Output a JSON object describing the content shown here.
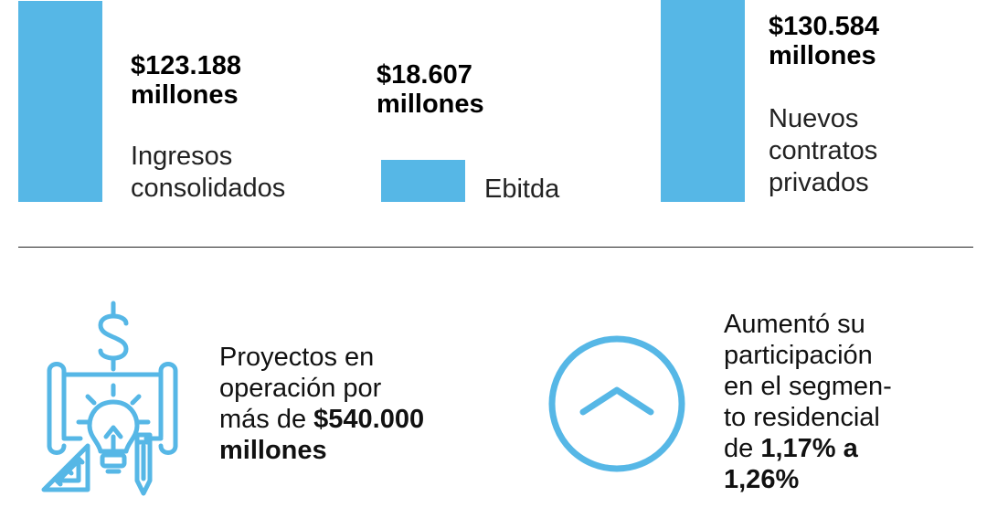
{
  "accent_color": "#56b7e6",
  "chart_data": {
    "type": "bar",
    "title": "",
    "xlabel": "",
    "ylabel": "",
    "categories": [
      "Ingresos consolidados",
      "Ebitda",
      "Nuevos contratos privados"
    ],
    "values": [
      123188,
      18607,
      130584
    ],
    "value_labels": [
      "$123.188 millones",
      "$18.607 millones",
      "$130.584 millones"
    ],
    "label_lines": [
      [
        "Ingresos",
        "consolidados"
      ],
      [
        "Ebitda"
      ],
      [
        "Nuevos",
        "contratos",
        "privados"
      ]
    ],
    "value_lines": [
      [
        "$123.188",
        "millones"
      ],
      [
        "$18.607",
        "millones"
      ],
      [
        "$130.584",
        "millones"
      ]
    ],
    "unit": "millones"
  },
  "highlights": {
    "projects": {
      "icon": "blueprint-lightbulb-dollar-icon",
      "line1": "Proyectos en",
      "line2": "operación por",
      "line3_prefix": "más de ",
      "line3_bold": "$540.000",
      "line4_bold": "millones"
    },
    "share": {
      "icon": "chevron-up-circle-icon",
      "line1": "Aumentó su",
      "line2": "participación",
      "line3": "en el segmen-",
      "line4": "to residencial",
      "line5_prefix": "de ",
      "line5_bold": "1,17% a",
      "line6_bold": "1,26%"
    }
  }
}
